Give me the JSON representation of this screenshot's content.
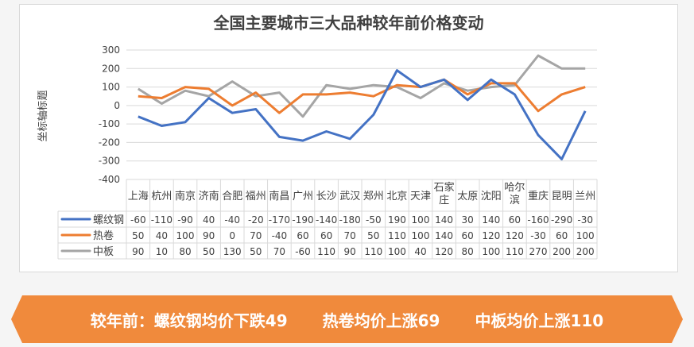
{
  "chart_data": {
    "type": "line",
    "title": "全国主要城市三大品种较年前价格变动",
    "ylabel": "坐标轴标题",
    "xlabel": "",
    "ylim": [
      -400,
      300
    ],
    "yticks": [
      300,
      200,
      100,
      0,
      -100,
      -200,
      -300,
      -400
    ],
    "grid": true,
    "legend": "table-left",
    "categories": [
      "上海",
      "杭州",
      "南京",
      "济南",
      "合肥",
      "福州",
      "南昌",
      "广州",
      "长沙",
      "武汉",
      "郑州",
      "北京",
      "天津",
      "石家庄",
      "太原",
      "沈阳",
      "哈尔滨",
      "重庆",
      "昆明",
      "兰州"
    ],
    "series": [
      {
        "name": "螺纹钢",
        "color": "#4472c4",
        "values": [
          -60,
          -110,
          -90,
          40,
          -40,
          -20,
          -170,
          -190,
          -140,
          -180,
          -50,
          190,
          100,
          140,
          30,
          140,
          60,
          -160,
          -290,
          -30
        ]
      },
      {
        "name": "热卷",
        "color": "#ed7d31",
        "values": [
          50,
          40,
          100,
          90,
          0,
          70,
          -40,
          60,
          60,
          70,
          50,
          110,
          100,
          140,
          60,
          120,
          120,
          -30,
          60,
          100
        ]
      },
      {
        "name": "中板",
        "color": "#a5a5a5",
        "values": [
          90,
          10,
          80,
          50,
          130,
          50,
          70,
          -60,
          110,
          90,
          110,
          100,
          40,
          120,
          80,
          100,
          110,
          270,
          200,
          200
        ]
      }
    ]
  },
  "banner": {
    "color": "#f08a3c",
    "items": [
      "较年前：螺纹钢均价下跌49",
      "热卷均价上涨69",
      "中板均价上涨110"
    ]
  }
}
